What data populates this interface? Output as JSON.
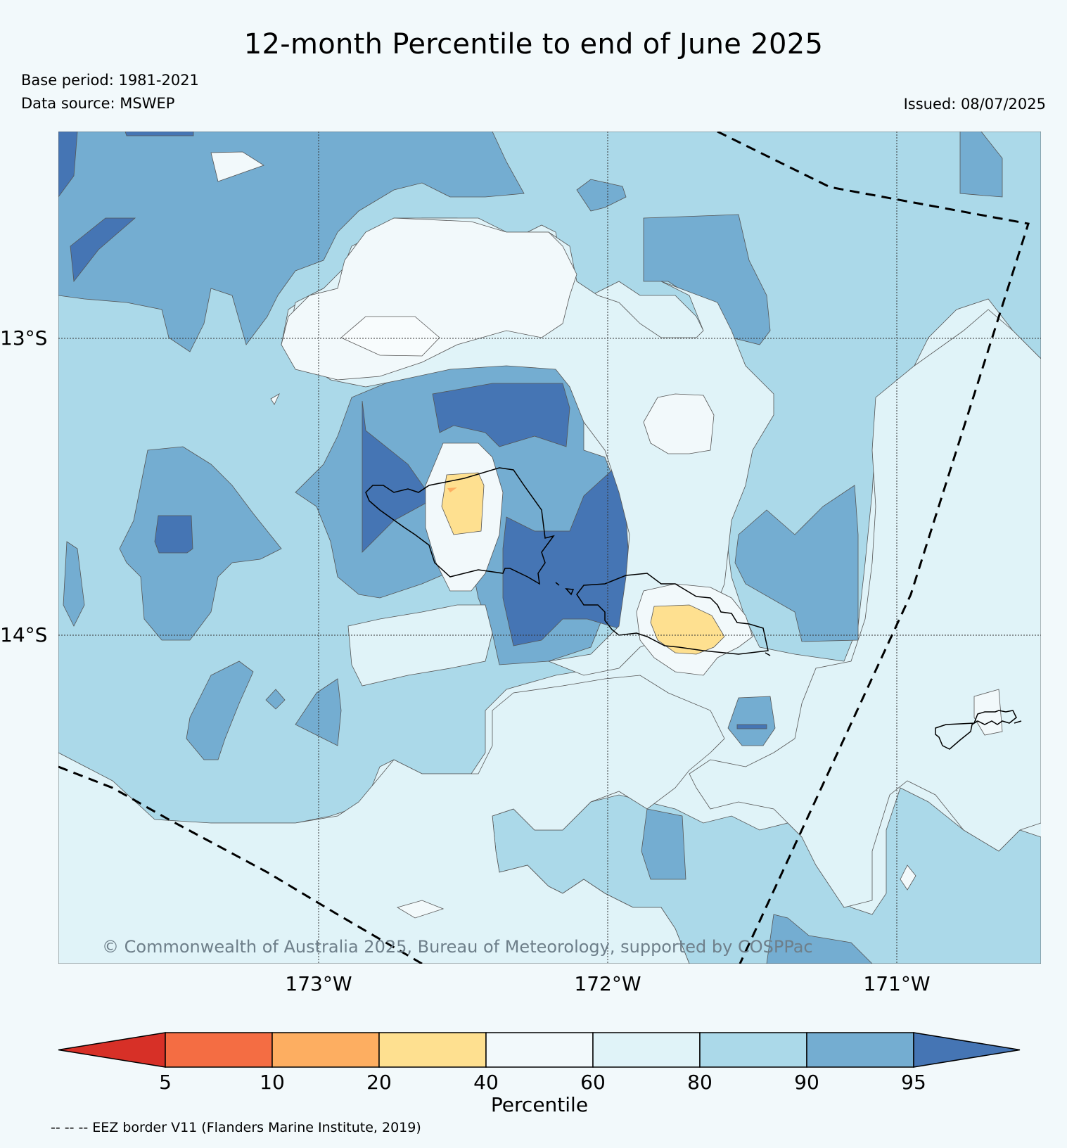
{
  "title": "12-month Percentile to end of June 2025",
  "base_period": "Base period: 1981-2021",
  "data_source": "Data source: MSWEP",
  "issued": "Issued: 08/07/2025",
  "copyright": "© Commonwealth of Australia 2025, Bureau of Meteorology, supported by COSPPac",
  "map": {
    "lat_labels": [
      "13°S",
      "14°S"
    ],
    "lon_labels": [
      "173°W",
      "172°W",
      "171°W"
    ]
  },
  "colorbar": {
    "title": "Percentile",
    "ticks": [
      "5",
      "10",
      "20",
      "40",
      "60",
      "80",
      "90",
      "95"
    ],
    "colors": [
      "#d73027",
      "#f46d43",
      "#fdae61",
      "#fee090",
      "#f2f9fb",
      "#e0f3f8",
      "#abd9e9",
      "#74add1",
      "#4575b4"
    ]
  },
  "eez_note": "-- -- -- EEZ border V11 (Flanders Marine Institute, 2019)"
}
